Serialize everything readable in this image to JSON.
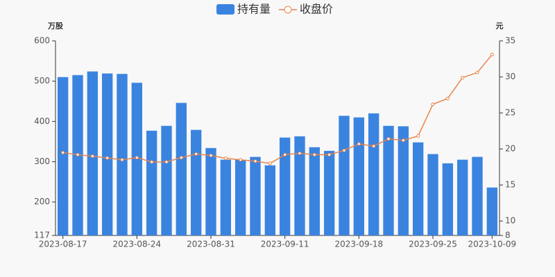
{
  "chart_data": {
    "type": "bar-line",
    "categories": [
      "2023-08-17",
      null,
      null,
      null,
      null,
      "2023-08-24",
      null,
      null,
      null,
      null,
      "2023-08-31",
      null,
      null,
      null,
      null,
      "2023-09-11",
      null,
      null,
      null,
      null,
      "2023-09-18",
      null,
      null,
      null,
      null,
      "2023-09-25",
      null,
      null,
      null,
      "2023-10-09"
    ],
    "ylabel": "万股",
    "y2label": "元",
    "ylim": [
      117,
      600
    ],
    "yticks": [
      117,
      200,
      300,
      400,
      500,
      600
    ],
    "y2lim": [
      8,
      35
    ],
    "y2ticks": [
      8,
      10,
      15,
      20,
      25,
      30,
      35
    ],
    "legend": "top",
    "series": [
      {
        "name": "持有量",
        "type": "bar",
        "color": "#3a84e0",
        "values": [
          510,
          515,
          524,
          519,
          518,
          496,
          377,
          389,
          446,
          379,
          334,
          305,
          305,
          312,
          291,
          360,
          363,
          336,
          327,
          414,
          410,
          420,
          389,
          388,
          348,
          319,
          296,
          305,
          312,
          236
        ]
      },
      {
        "name": "收盘价",
        "type": "line",
        "axis": "y2",
        "color": "#e8834a",
        "values": [
          19.5,
          19.2,
          19.0,
          18.75,
          18.5,
          18.8,
          18.2,
          18.2,
          18.8,
          19.3,
          19.1,
          18.7,
          18.5,
          18.3,
          18.0,
          19.2,
          19.4,
          19.2,
          19.2,
          19.8,
          20.7,
          20.4,
          21.4,
          21.2,
          21.8,
          26.2,
          27.0,
          29.9,
          30.6,
          33.1
        ]
      }
    ]
  }
}
